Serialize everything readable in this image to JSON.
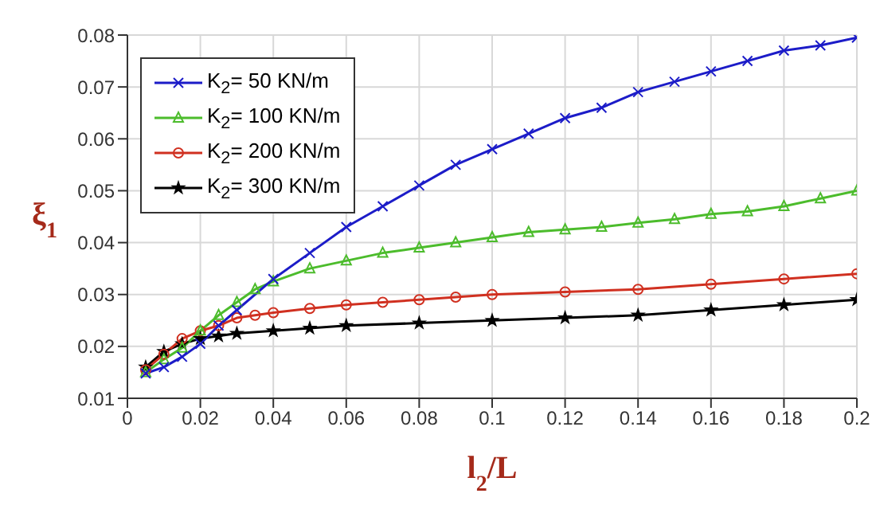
{
  "chart_data": {
    "type": "line",
    "xlabel": "l$_{2}$/L",
    "ylabel": "ξ$_{1}$",
    "xlim": [
      0,
      0.2
    ],
    "xticks": [
      0,
      0.02,
      0.04,
      0.06,
      0.08,
      0.1,
      0.12,
      0.14,
      0.16,
      0.18,
      0.2
    ],
    "ylim": [
      0.01,
      0.08
    ],
    "yticks": [
      0.01,
      0.02,
      0.03,
      0.04,
      0.05,
      0.06,
      0.07,
      0.08
    ],
    "grid": true,
    "legend": "top left",
    "line_style": "solid",
    "series": [
      {
        "name": "K$_{2}$= 50 KN/m",
        "color": "#1c1cc8",
        "marker": "cross",
        "x": [
          0.005,
          0.01,
          0.015,
          0.02,
          0.025,
          0.03,
          0.04,
          0.05,
          0.06,
          0.07,
          0.08,
          0.09,
          0.1,
          0.11,
          0.12,
          0.13,
          0.14,
          0.15,
          0.16,
          0.17,
          0.18,
          0.19,
          0.2
        ],
        "values": [
          0.0148,
          0.016,
          0.018,
          0.0205,
          0.024,
          0.027,
          0.033,
          0.038,
          0.043,
          0.047,
          0.051,
          0.055,
          0.058,
          0.061,
          0.064,
          0.066,
          0.069,
          0.071,
          0.073,
          0.075,
          0.077,
          0.078,
          0.0795
        ]
      },
      {
        "name": "K$_{2}$= 100 KN/m",
        "color": "#4cbc2c",
        "marker": "triangle",
        "x": [
          0.005,
          0.01,
          0.015,
          0.02,
          0.025,
          0.03,
          0.035,
          0.04,
          0.05,
          0.06,
          0.07,
          0.08,
          0.09,
          0.1,
          0.11,
          0.12,
          0.13,
          0.14,
          0.15,
          0.16,
          0.17,
          0.18,
          0.19,
          0.2
        ],
        "values": [
          0.015,
          0.0175,
          0.0197,
          0.023,
          0.026,
          0.0285,
          0.031,
          0.0325,
          0.035,
          0.0365,
          0.038,
          0.039,
          0.04,
          0.041,
          0.042,
          0.0425,
          0.043,
          0.0438,
          0.0445,
          0.0455,
          0.046,
          0.047,
          0.0485,
          0.05
        ]
      },
      {
        "name": "K$_{2}$= 200 KN/m",
        "color": "#d03020",
        "marker": "circle",
        "x": [
          0.005,
          0.01,
          0.015,
          0.02,
          0.025,
          0.03,
          0.035,
          0.04,
          0.05,
          0.06,
          0.07,
          0.08,
          0.09,
          0.1,
          0.12,
          0.14,
          0.16,
          0.18,
          0.2
        ],
        "values": [
          0.0155,
          0.0185,
          0.0215,
          0.023,
          0.024,
          0.0255,
          0.026,
          0.0265,
          0.0273,
          0.028,
          0.0285,
          0.029,
          0.0295,
          0.03,
          0.0305,
          0.031,
          0.032,
          0.033,
          0.034
        ]
      },
      {
        "name": "K$_{2}$= 300 KN/m",
        "color": "#000000",
        "marker": "star",
        "x": [
          0.005,
          0.01,
          0.015,
          0.02,
          0.025,
          0.03,
          0.04,
          0.05,
          0.06,
          0.08,
          0.1,
          0.12,
          0.14,
          0.16,
          0.18,
          0.2
        ],
        "values": [
          0.016,
          0.019,
          0.0205,
          0.0215,
          0.022,
          0.0225,
          0.023,
          0.0235,
          0.024,
          0.0245,
          0.025,
          0.0255,
          0.026,
          0.027,
          0.028,
          0.029
        ]
      }
    ]
  }
}
